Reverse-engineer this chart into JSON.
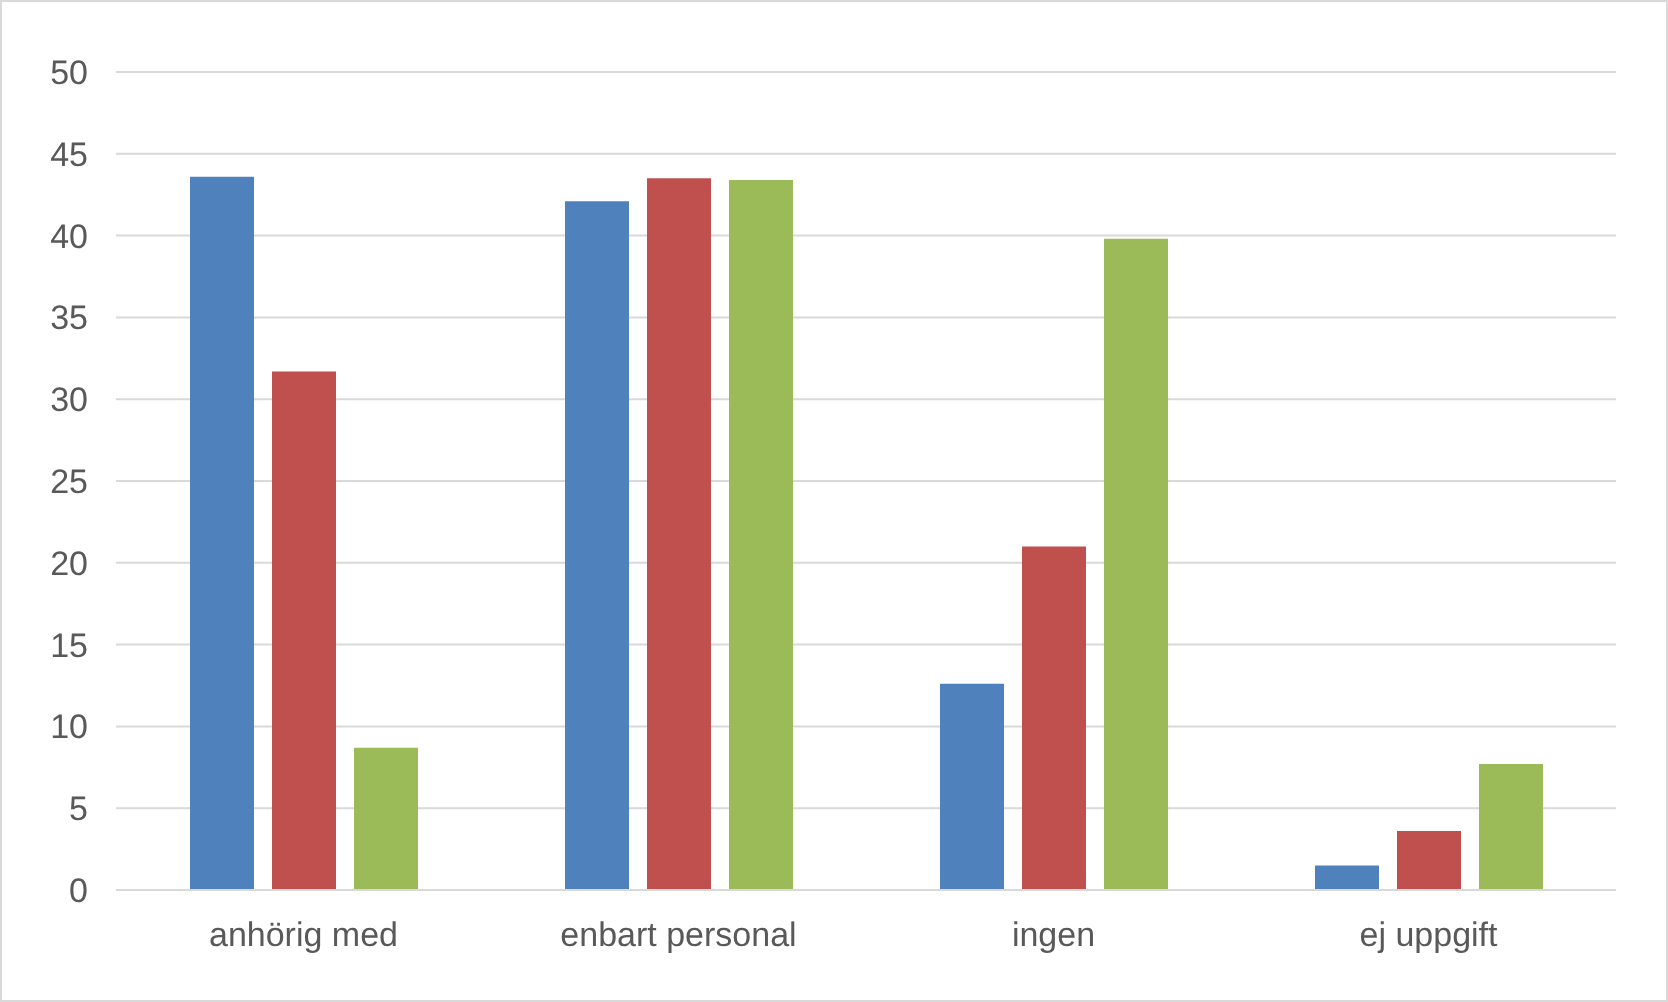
{
  "chart_data": {
    "type": "bar",
    "categories": [
      "anhörig med",
      "enbart personal",
      "ingen",
      "ej uppgift"
    ],
    "series": [
      {
        "color": "#4f81bd",
        "values": [
          43.6,
          42.1,
          12.6,
          1.5
        ]
      },
      {
        "color": "#c0504d",
        "values": [
          31.7,
          43.5,
          21.0,
          3.6
        ]
      },
      {
        "color": "#9bbb59",
        "values": [
          8.7,
          43.4,
          39.8,
          7.7
        ]
      }
    ],
    "ylim": [
      0,
      50
    ],
    "yticks": [
      0,
      5,
      10,
      15,
      20,
      25,
      30,
      35,
      40,
      45,
      50
    ],
    "grid": "y"
  }
}
